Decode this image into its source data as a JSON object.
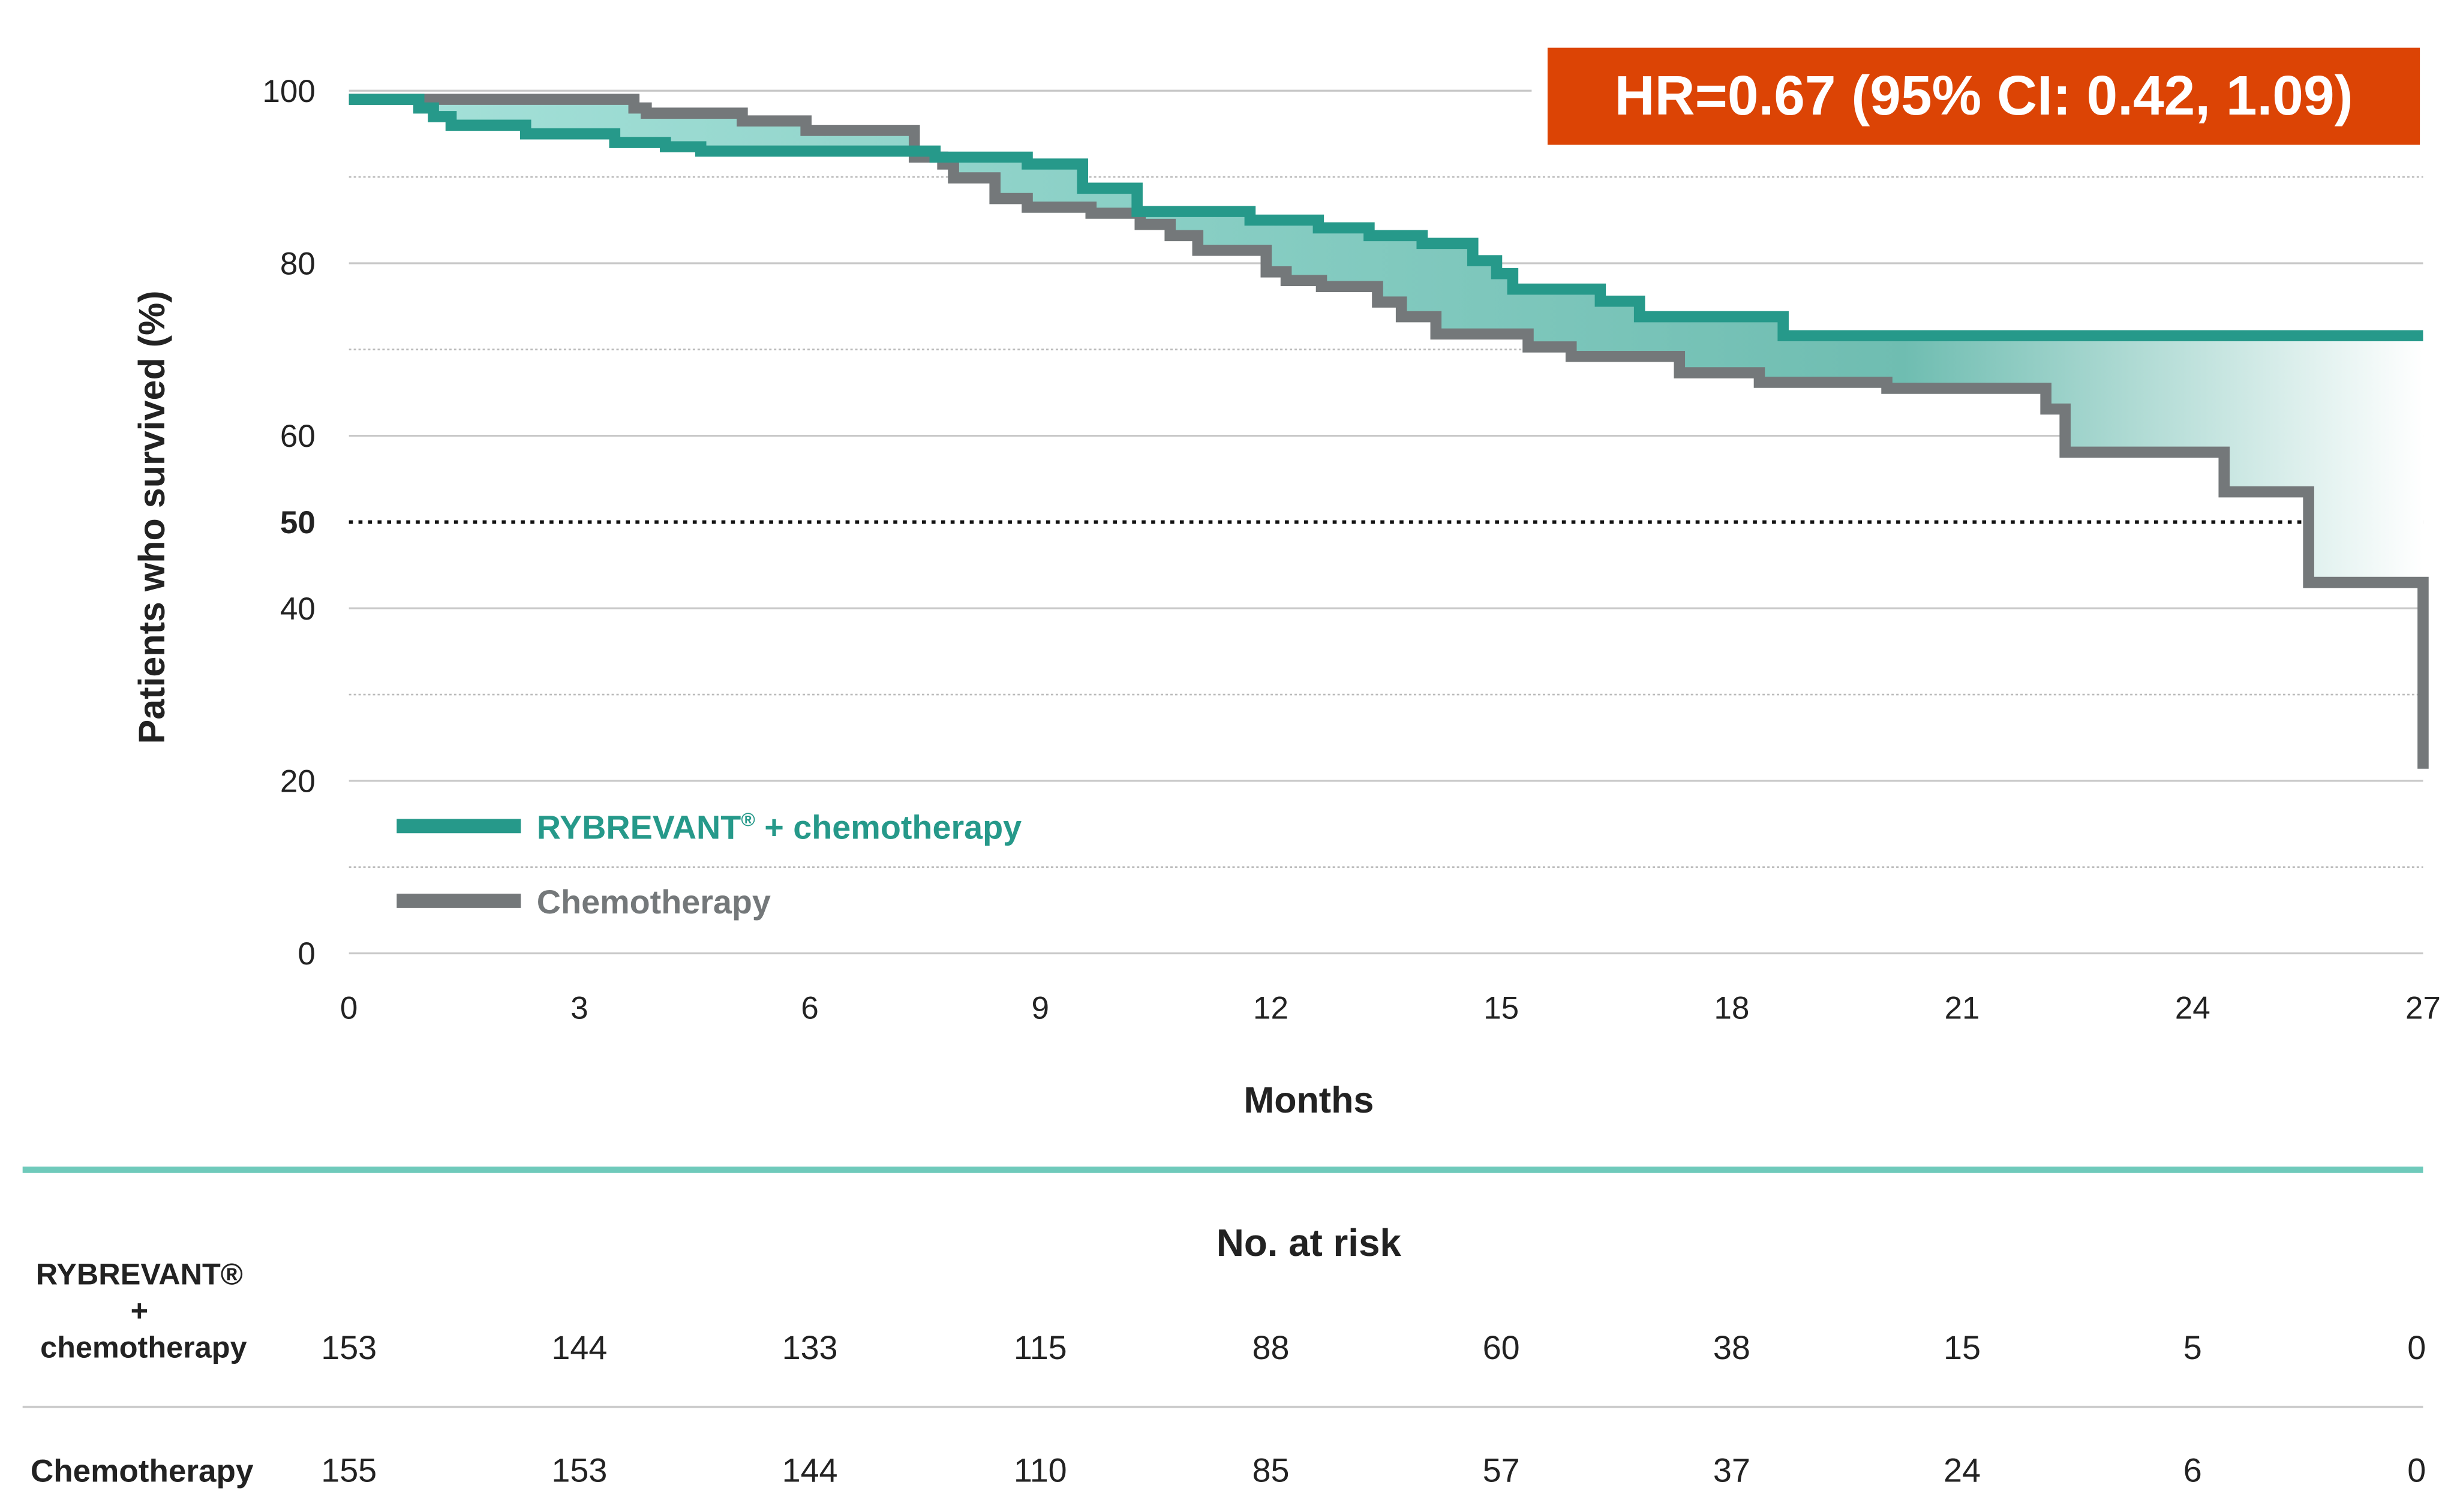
{
  "chart_data": {
    "type": "line",
    "subtype": "kaplan-meier step",
    "ylabel": "Patients who survived (%)",
    "xlabel": "Months",
    "xlim": [
      0,
      27
    ],
    "ylim": [
      0,
      100
    ],
    "x_ticks": [
      "0",
      "3",
      "6",
      "9",
      "12",
      "15",
      "18",
      "21",
      "24",
      "27"
    ],
    "y_ticks": [
      "0",
      "20",
      "40",
      "50",
      "60",
      "80",
      "100"
    ],
    "reference_line": {
      "y": 50,
      "style": "dotted"
    },
    "grid": "horizontal (solid at 20-step ticks, dotted between)",
    "annotation": "HR=0.67 (95% CI: 0.42, 1.09)",
    "legend_position": "bottom-left",
    "series": [
      {
        "name": "RYBREVANT® + chemotherapy",
        "legend_main": "RYBREVANT",
        "legend_sup": "®",
        "legend_rest": " + chemotherapy",
        "color": "#26998a",
        "x": [
          0,
          0.91,
          1.1,
          1.33,
          2.3,
          3.46,
          4.12,
          4.58,
          7.63,
          8.83,
          9.55,
          10.26,
          11.73,
          12.62,
          13.28,
          13.97,
          14.63,
          14.94,
          15.15,
          16.29,
          16.8,
          18.67,
          27
        ],
        "y": [
          99,
          98,
          97,
          96,
          95,
          94,
          93.5,
          93,
          92.3,
          91.5,
          88.7,
          86,
          85,
          84.1,
          83.2,
          82.3,
          80.3,
          78.8,
          77,
          75.6,
          73.8,
          71.6,
          71.6
        ]
      },
      {
        "name": "Chemotherapy",
        "color": "#74787a",
        "x": [
          0,
          3.71,
          3.87,
          5.12,
          5.95,
          7.36,
          7.73,
          7.87,
          8.41,
          8.83,
          9.66,
          10.3,
          10.69,
          11.05,
          11.94,
          12.2,
          12.66,
          13.39,
          13.7,
          14.15,
          15.35,
          15.91,
          17.32,
          18.36,
          20.02,
          22.09,
          22.34,
          24.41,
          25.51,
          27
        ],
        "y": [
          99,
          98,
          97.4,
          96.5,
          95.4,
          92.3,
          91.5,
          89.9,
          87.5,
          86.5,
          85.8,
          84.5,
          83.2,
          81.5,
          79,
          78,
          77.3,
          75.5,
          73.8,
          71.8,
          70.3,
          69.2,
          67.3,
          66.2,
          65.5,
          63.1,
          58.1,
          53.5,
          43,
          21.4
        ]
      }
    ],
    "fill_between_color": "#8fd3c9",
    "annotation_color": "#dc4405"
  },
  "risk_table": {
    "title": "No. at risk",
    "rows": [
      {
        "label_line1": "RYBREVANT®",
        "label_line2": "+",
        "label_line3": "chemotherapy",
        "values": [
          "153",
          "144",
          "133",
          "115",
          "88",
          "60",
          "38",
          "15",
          "5",
          "0"
        ]
      },
      {
        "label_line1": "Chemotherapy",
        "values": [
          "155",
          "153",
          "144",
          "110",
          "85",
          "57",
          "37",
          "24",
          "6",
          "0"
        ]
      }
    ],
    "divider_color": "#6fcabb"
  }
}
